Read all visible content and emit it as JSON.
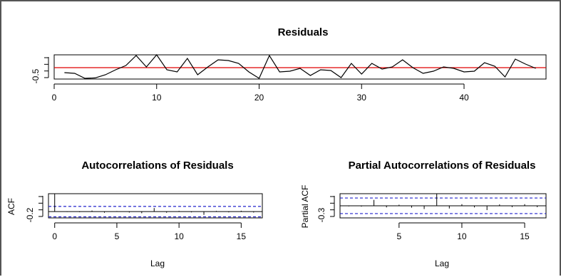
{
  "chart_data": [
    {
      "type": "line",
      "title": "Residuals",
      "xlabel": "",
      "ylabel": "",
      "x_ticks": [
        "0",
        "10",
        "20",
        "30",
        "40"
      ],
      "y_ticks": [
        "-0.5"
      ],
      "xlim": [
        0,
        48
      ],
      "ylim": [
        -0.8,
        0.9
      ],
      "reference_line": {
        "y": 0.0,
        "color": "#e00000"
      },
      "series": [
        {
          "color": "#000000",
          "x": [
            1,
            2,
            3,
            4,
            5,
            6,
            7,
            8,
            9,
            10,
            11,
            12,
            13,
            14,
            15,
            16,
            17,
            18,
            19,
            20,
            21,
            22,
            23,
            24,
            25,
            26,
            27,
            28,
            29,
            30,
            31,
            32,
            33,
            34,
            35,
            36,
            37,
            38,
            39,
            40,
            41,
            42,
            43,
            44,
            45,
            46,
            47
          ],
          "values": [
            -0.35,
            -0.4,
            -0.75,
            -0.72,
            -0.5,
            -0.15,
            0.15,
            0.85,
            0.05,
            1.05,
            -0.15,
            -0.3,
            0.65,
            -0.5,
            0.05,
            0.55,
            0.5,
            0.3,
            -0.3,
            -0.75,
            0.85,
            -0.3,
            -0.25,
            -0.05,
            -0.55,
            -0.15,
            -0.2,
            -0.7,
            0.3,
            -0.45,
            0.3,
            -0.1,
            0.05,
            0.55,
            0.0,
            -0.4,
            -0.25,
            0.05,
            -0.05,
            -0.3,
            -0.25,
            0.35,
            0.1,
            -0.65,
            0.6,
            0.25,
            -0.05
          ]
        }
      ]
    },
    {
      "type": "bar",
      "title": "Autocorrelations of Residuals",
      "xlabel": "Lag",
      "ylabel": "ACF",
      "x_ticks": [
        "0",
        "5",
        "10",
        "15"
      ],
      "y_ticks": [
        "-0.2"
      ],
      "xlim": [
        -0.5,
        16.7
      ],
      "ylim": [
        -0.35,
        1.0
      ],
      "confidence_band": [
        -0.29,
        0.29
      ],
      "lags": [
        0,
        1,
        2,
        3,
        4,
        5,
        6,
        7,
        8,
        9,
        10,
        11,
        12,
        13,
        14,
        15,
        16
      ],
      "values": [
        1.0,
        -0.02,
        -0.03,
        0.06,
        -0.06,
        0.03,
        -0.05,
        -0.09,
        0.2,
        -0.06,
        0.04,
        -0.04,
        -0.18,
        0.04,
        -0.04,
        0.05,
        -0.05
      ]
    },
    {
      "type": "bar",
      "title": "Partial Autocorrelations of Residuals",
      "xlabel": "Lag",
      "ylabel": "Partial ACF",
      "x_ticks": [
        "5",
        "10",
        "15"
      ],
      "y_ticks": [
        "-0.3"
      ],
      "xlim": [
        0.3,
        16.7
      ],
      "ylim": [
        -0.45,
        0.45
      ],
      "confidence_band": [
        -0.29,
        0.29
      ],
      "lags": [
        1,
        2,
        3,
        4,
        5,
        6,
        7,
        8,
        9,
        10,
        11,
        12,
        13,
        14,
        15,
        16
      ],
      "values": [
        -0.02,
        -0.03,
        0.22,
        -0.06,
        0.04,
        -0.07,
        -0.12,
        0.45,
        -0.1,
        0.06,
        -0.06,
        -0.16,
        0.05,
        -0.05,
        0.06,
        -0.05
      ]
    }
  ]
}
